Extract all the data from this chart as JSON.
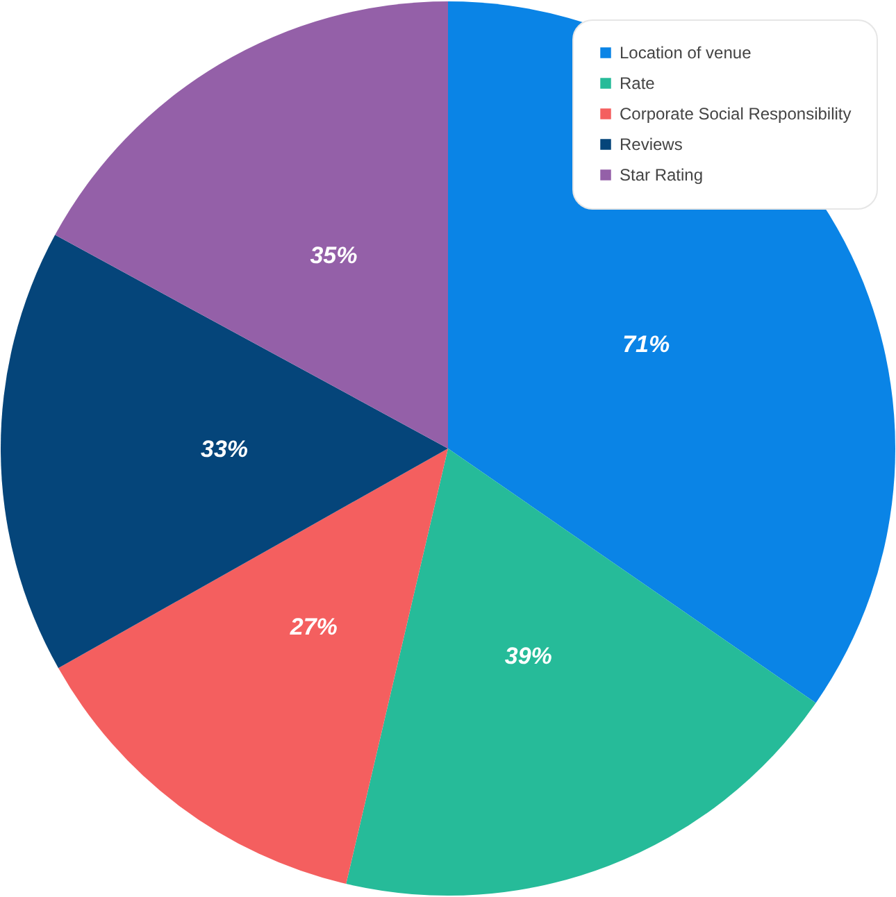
{
  "chart_data": {
    "type": "pie",
    "categories": [
      "Location of venue",
      "Rate",
      "Corporate Social Responsibility",
      "Reviews",
      "Star Rating"
    ],
    "values": [
      71,
      39,
      27,
      33,
      35
    ],
    "colors": [
      "#0a84e6",
      "#26bb99",
      "#f45f5f",
      "#05457a",
      "#9460a8"
    ],
    "value_labels": [
      "71%",
      "39%",
      "27%",
      "33%",
      "35%"
    ],
    "legend": "top right"
  }
}
